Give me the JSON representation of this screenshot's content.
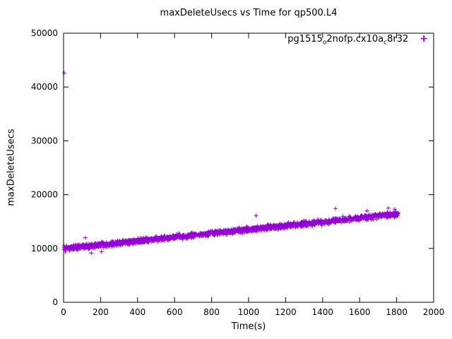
{
  "chart_data": {
    "type": "scatter",
    "title": "maxDeleteUsecs vs Time for qp500.L4",
    "xlabel": "Time(s)",
    "ylabel": "maxDeleteUsecs",
    "xlim": [
      0,
      2000
    ],
    "ylim": [
      0,
      50000
    ],
    "xticks": [
      0,
      200,
      400,
      600,
      800,
      1000,
      1200,
      1400,
      1600,
      1800,
      2000
    ],
    "yticks": [
      0,
      10000,
      20000,
      30000,
      40000,
      50000
    ],
    "grid": false,
    "legend": {
      "position": "top-right-inside",
      "marker": "plus",
      "label_plain": "pg1515_o2nofp.cx10a_c8r32",
      "label_parts": [
        {
          "t": "pg1515"
        },
        {
          "s": "o"
        },
        {
          "t": "2nofp.cx10a"
        },
        {
          "s": "c"
        },
        {
          "t": "8r32"
        }
      ]
    },
    "series": [
      {
        "name": "pg1515_o2nofp.cx10a_c8r32",
        "color": "#9400d3",
        "marker": "plus",
        "trend": {
          "x_start": 0,
          "x_end": 1810,
          "y_start": 9950,
          "y_end": 16400,
          "noise": 700,
          "count": 1700,
          "seed": 42
        },
        "outliers": [
          [
            3,
            42600
          ],
          [
            118,
            12000
          ],
          [
            150,
            9150
          ],
          [
            205,
            9400
          ],
          [
            1040,
            16100
          ],
          [
            1470,
            17400
          ],
          [
            1640,
            17000
          ],
          [
            1755,
            17500
          ],
          [
            1790,
            17300
          ]
        ]
      }
    ]
  }
}
